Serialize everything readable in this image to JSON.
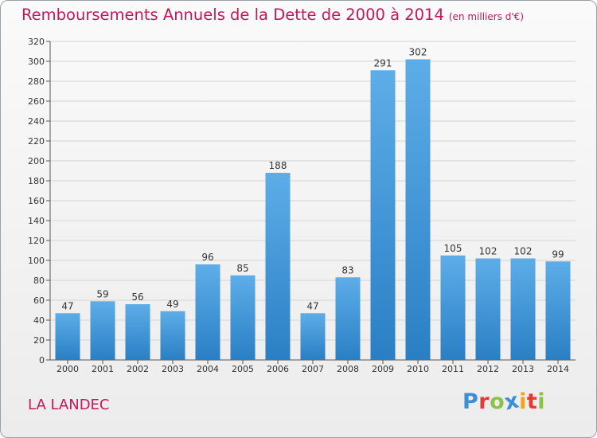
{
  "header": {
    "title": "Remboursements Annuels de la Dette de 2000 à 2014",
    "unit": "(en milliers d'€)"
  },
  "footer": {
    "commune": "LA LANDEC",
    "logo_letters": [
      "P",
      "r",
      "o",
      "x",
      "i",
      "t",
      "i"
    ],
    "logo_colors": [
      "#3a8fd6",
      "#e53935",
      "#8bc34a",
      "#3a8fd6",
      "#f6a11a",
      "#e53935",
      "#8bc34a"
    ]
  },
  "chart_data": {
    "type": "bar",
    "categories": [
      "2000",
      "2001",
      "2002",
      "2003",
      "2004",
      "2005",
      "2006",
      "2007",
      "2008",
      "2009",
      "2010",
      "2011",
      "2012",
      "2013",
      "2014"
    ],
    "values": [
      47,
      59,
      56,
      49,
      96,
      85,
      188,
      47,
      83,
      291,
      302,
      105,
      102,
      102,
      99
    ],
    "ylim": [
      0,
      320
    ],
    "yticks": [
      0,
      20,
      40,
      60,
      80,
      100,
      120,
      140,
      160,
      180,
      200,
      220,
      240,
      260,
      280,
      300,
      320
    ],
    "grid": true,
    "bar_color_top": "#5dade8",
    "bar_color_bottom": "#2a7fc4"
  }
}
